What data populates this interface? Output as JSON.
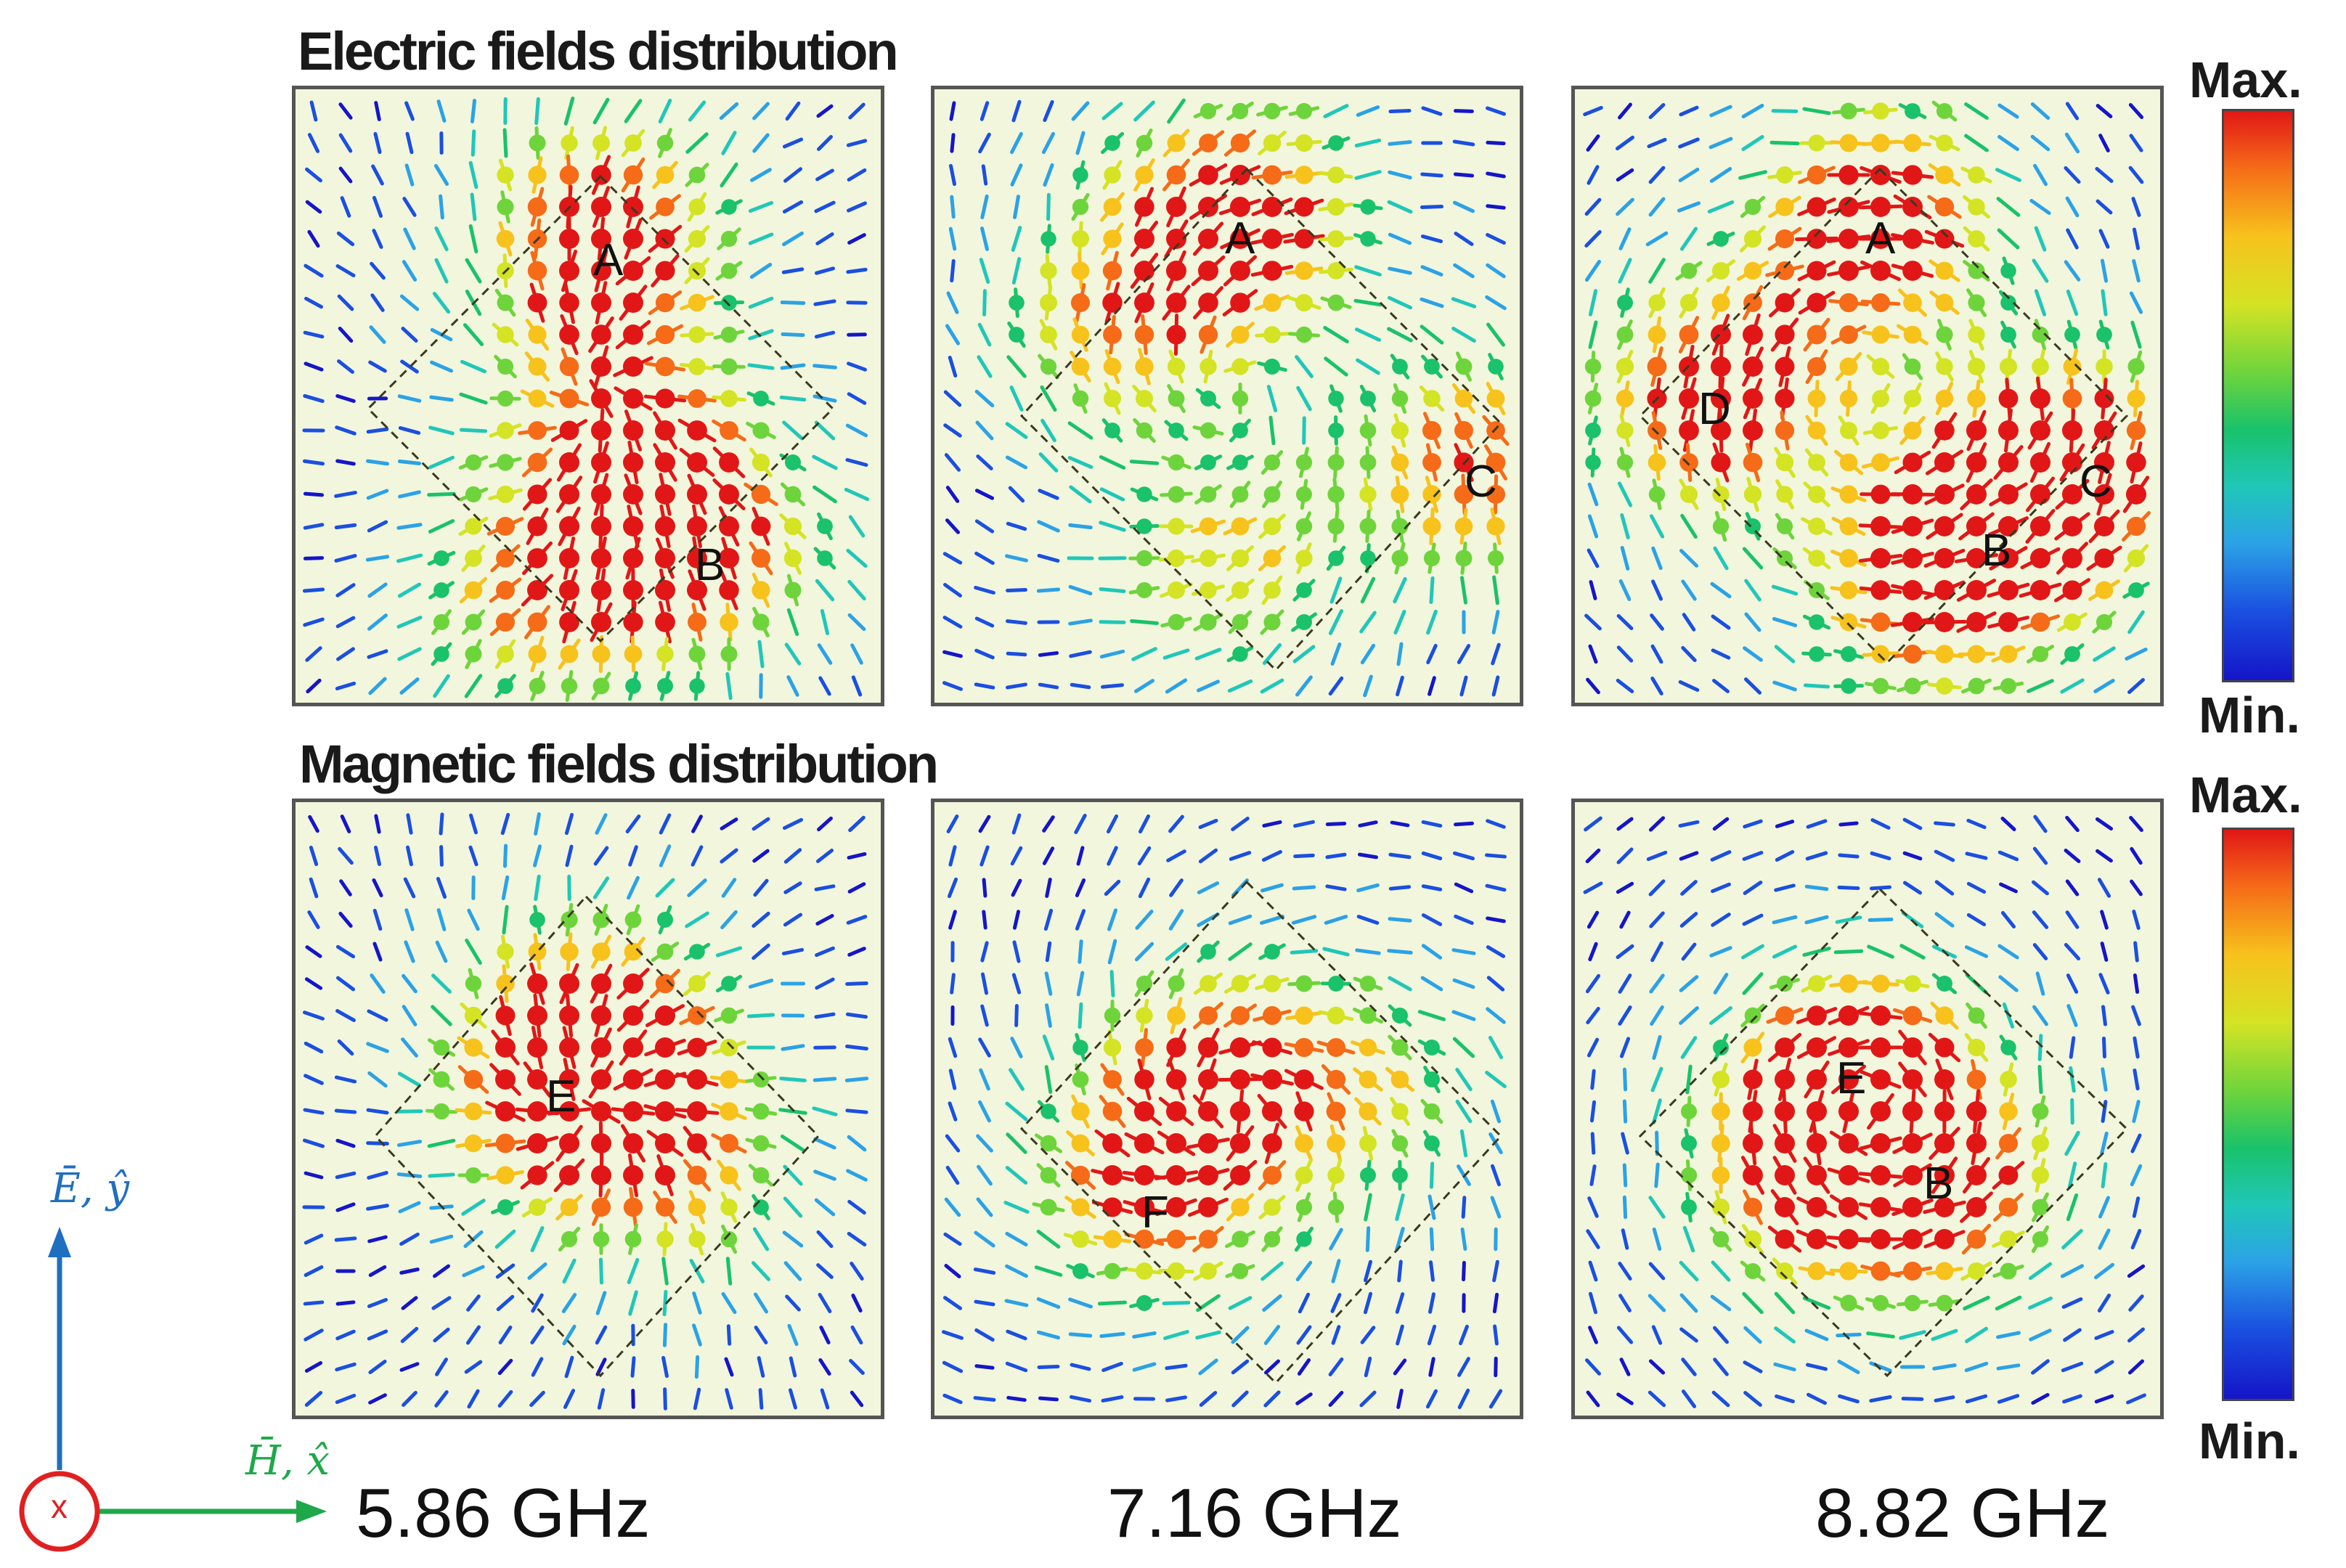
{
  "titles": {
    "electric": "Electric fields distribution",
    "magnetic": "Magnetic fields distribution"
  },
  "colorbar": {
    "max_label": "Max.",
    "min_label": "Min."
  },
  "frequencies": [
    "5.86 GHz",
    "7.16 GHz",
    "8.82 GHz"
  ],
  "axes": {
    "e_label": "Ē, ŷ",
    "h_label": "H̄, x̂",
    "x_label": "x"
  },
  "panels": {
    "e1": {
      "labels": [
        "A",
        "B"
      ]
    },
    "e2": {
      "labels": [
        "A",
        "C"
      ]
    },
    "e3": {
      "labels": [
        "A",
        "D",
        "C",
        "B"
      ]
    },
    "m1": {
      "labels": [
        "E"
      ]
    },
    "m2": {
      "labels": [
        "F"
      ]
    },
    "m3": {
      "labels": [
        "E",
        "B"
      ]
    }
  },
  "colors": {
    "e_axis": "#1f6fc0",
    "h_axis": "#1fa84a",
    "x_circle": "#e02020",
    "panel_bg": "#f2f6dc"
  }
}
